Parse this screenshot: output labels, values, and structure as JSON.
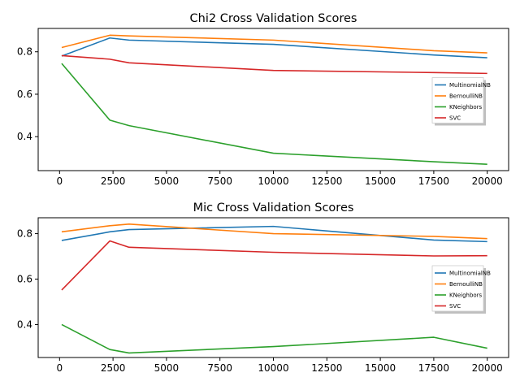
{
  "chart_data": [
    {
      "type": "line",
      "title": "Chi2 Cross Validation Scores",
      "xlabel": "",
      "ylabel": "",
      "x": [
        100,
        2350,
        3250,
        10000,
        17500,
        20000
      ],
      "xlim": [
        -1000,
        21000
      ],
      "ylim": [
        0.24,
        0.91
      ],
      "xticks": [
        0,
        2500,
        5000,
        7500,
        10000,
        12500,
        15000,
        17500,
        20000
      ],
      "yticks": [
        0.4,
        0.6,
        0.8
      ],
      "legend": "center-right",
      "series": [
        {
          "name": "MultinomialNB",
          "color": "#1f77b4",
          "values": [
            0.78,
            0.865,
            0.855,
            0.835,
            0.785,
            0.772
          ]
        },
        {
          "name": "BernoulliNB",
          "color": "#ff7f0e",
          "values": [
            0.82,
            0.878,
            0.875,
            0.855,
            0.805,
            0.795
          ]
        },
        {
          "name": "KNeighbors",
          "color": "#2ca02c",
          "values": [
            0.745,
            0.478,
            0.452,
            0.322,
            0.282,
            0.27
          ]
        },
        {
          "name": "SVC",
          "color": "#d62728",
          "values": [
            0.782,
            0.765,
            0.748,
            0.712,
            0.702,
            0.698
          ]
        }
      ]
    },
    {
      "type": "line",
      "title": "Mic Cross Validation Scores",
      "xlabel": "",
      "ylabel": "",
      "x": [
        100,
        2350,
        3250,
        10000,
        17500,
        20000
      ],
      "xlim": [
        -1000,
        21000
      ],
      "ylim": [
        0.255,
        0.87
      ],
      "xticks": [
        0,
        2500,
        5000,
        7500,
        10000,
        12500,
        15000,
        17500,
        20000
      ],
      "yticks": [
        0.4,
        0.6,
        0.8
      ],
      "legend": "center-right",
      "series": [
        {
          "name": "MultinomialNB",
          "color": "#1f77b4",
          "values": [
            0.77,
            0.808,
            0.818,
            0.832,
            0.772,
            0.765
          ]
        },
        {
          "name": "BernoulliNB",
          "color": "#ff7f0e",
          "values": [
            0.808,
            0.835,
            0.842,
            0.8,
            0.788,
            0.778
          ]
        },
        {
          "name": "KNeighbors",
          "color": "#2ca02c",
          "values": [
            0.4,
            0.29,
            0.275,
            0.303,
            0.344,
            0.296
          ]
        },
        {
          "name": "SVC",
          "color": "#d62728",
          "values": [
            0.552,
            0.768,
            0.74,
            0.718,
            0.702,
            0.703
          ]
        }
      ]
    }
  ]
}
